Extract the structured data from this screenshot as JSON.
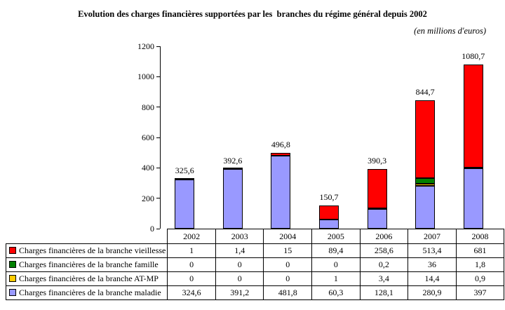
{
  "title": "Evolution des charges financières supportées par les  branches du régime général depuis 2002",
  "subtitle": "(en millions d'euros)",
  "chart_data": {
    "type": "bar",
    "stacked": true,
    "grid": false,
    "legend_position": "table-left",
    "title": "Evolution des charges financières supportées par les  branches du régime général depuis 2002",
    "units_note": "(en millions d'euros)",
    "xlabel": "",
    "ylabel": "",
    "ylim": [
      0,
      1200
    ],
    "yticks": [
      0,
      200,
      400,
      600,
      800,
      1000,
      1200
    ],
    "categories": [
      "2002",
      "2003",
      "2004",
      "2005",
      "2006",
      "2007",
      "2008"
    ],
    "series": [
      {
        "name": "Charges financières de la branche vieillesse",
        "color": "#FF0000",
        "values": [
          1,
          1.4,
          15,
          89.4,
          258.6,
          513.4,
          681
        ],
        "labels": [
          "1",
          "1,4",
          "15",
          "89,4",
          "258,6",
          "513,4",
          "681"
        ]
      },
      {
        "name": "Charges financières de la branche famille",
        "color": "#008000",
        "values": [
          0,
          0,
          0,
          0,
          0.2,
          36,
          1.8
        ],
        "labels": [
          "0",
          "0",
          "0",
          "0",
          "0,2",
          "36",
          "1,8"
        ]
      },
      {
        "name": "Charges financières de la branche AT-MP",
        "color": "#FFCC00",
        "values": [
          0,
          0,
          0,
          1,
          3.4,
          14.4,
          0.9
        ],
        "labels": [
          "0",
          "0",
          "0",
          "1",
          "3,4",
          "14,4",
          "0,9"
        ]
      },
      {
        "name": "Charges financières de la branche maladie",
        "color": "#9999FF",
        "values": [
          324.6,
          391.2,
          481.8,
          60.3,
          128.1,
          280.9,
          397
        ],
        "labels": [
          "324,6",
          "391,2",
          "481,8",
          "60,3",
          "128,1",
          "280,9",
          "397"
        ]
      }
    ],
    "totals": [
      325.6,
      392.6,
      496.8,
      150.7,
      390.3,
      844.7,
      1080.7
    ],
    "totals_labels": [
      "325,6",
      "392,6",
      "496,8",
      "150,7",
      "390,3",
      "844,7",
      "1080,7"
    ]
  }
}
